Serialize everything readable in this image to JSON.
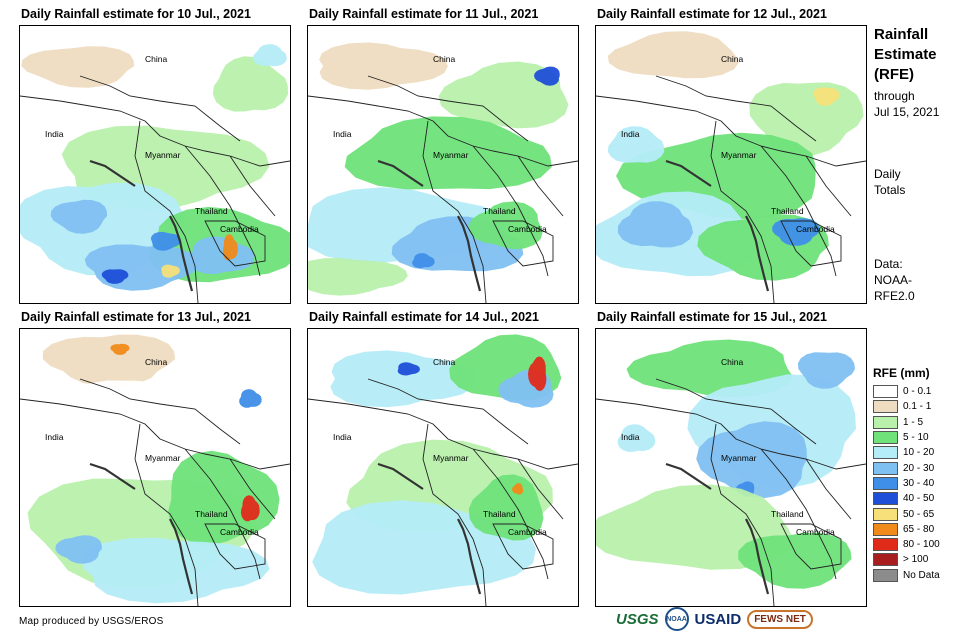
{
  "panels": [
    {
      "title": "Daily Rainfall estimate for 10 Jul., 2021"
    },
    {
      "title": "Daily Rainfall estimate for 11 Jul., 2021"
    },
    {
      "title": "Daily Rainfall estimate for 12 Jul., 2021"
    },
    {
      "title": "Daily Rainfall estimate for 13 Jul., 2021"
    },
    {
      "title": "Daily Rainfall estimate for 14 Jul., 2021"
    },
    {
      "title": "Daily Rainfall estimate for 15 Jul., 2021"
    }
  ],
  "place_labels": {
    "china": "China",
    "india": "India",
    "myanmar": "Myanmar",
    "thailand": "Thailand",
    "cambodia": "Cambodia"
  },
  "sidebar": {
    "title_line1": "Rainfall",
    "title_line2": "Estimate",
    "title_line3": "(RFE)",
    "through_label": "through",
    "through_date": "Jul 15, 2021",
    "daily_line1": "Daily",
    "daily_line2": "Totals",
    "data_line1": "Data:",
    "data_line2": "NOAA-",
    "data_line3": "RFE2.0"
  },
  "legend": {
    "title": "RFE (mm)",
    "items": [
      {
        "label": "0 - 0.1",
        "color": "#ffffff"
      },
      {
        "label": "0.1 - 1",
        "color": "#eedcc0"
      },
      {
        "label": "1 - 5",
        "color": "#b8f0ac"
      },
      {
        "label": "5 - 10",
        "color": "#6fe27a"
      },
      {
        "label": "10 - 20",
        "color": "#b4ecf8"
      },
      {
        "label": "20 - 30",
        "color": "#7fc0f2"
      },
      {
        "label": "30 - 40",
        "color": "#3f8ee8"
      },
      {
        "label": "40 - 50",
        "color": "#1e4fd8"
      },
      {
        "label": "50 - 65",
        "color": "#f7e07a"
      },
      {
        "label": "65 - 80",
        "color": "#f08a1a"
      },
      {
        "label": "80 - 100",
        "color": "#e02a1a"
      },
      {
        "label": "> 100",
        "color": "#a81e1e"
      },
      {
        "label": "No Data",
        "color": "#8c8c8c"
      }
    ]
  },
  "credit": "Map produced by USGS/EROS",
  "logos": {
    "usgs": "USGS",
    "noaa": "NOAA",
    "usaid": "USAID",
    "fews": "FEWS NET"
  }
}
